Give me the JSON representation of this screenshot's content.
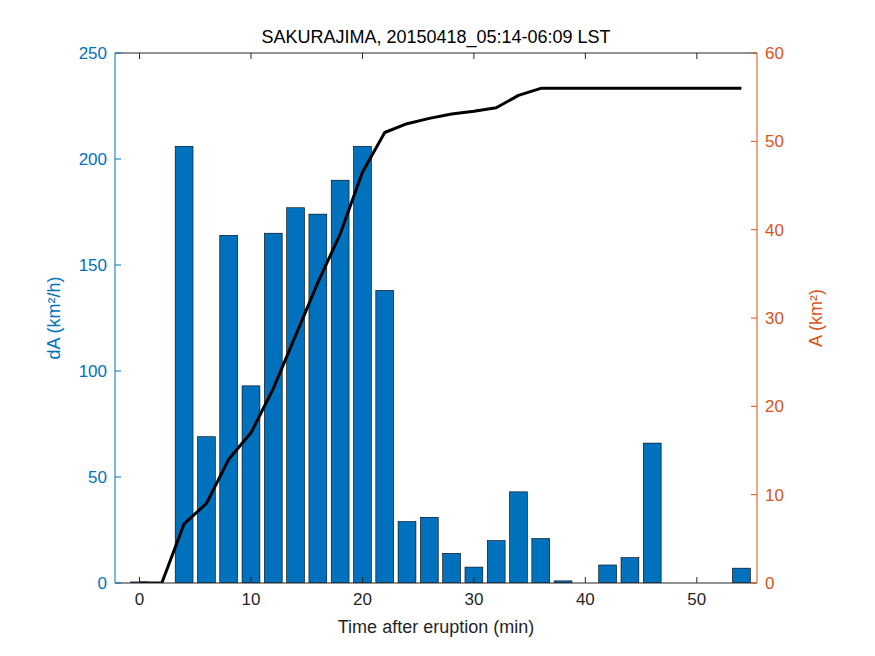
{
  "chart_data": {
    "type": "bar",
    "title": "SAKURAJIMA, 20150418_05:14-06:09 LST",
    "xlabel": "Time after eruption (min)",
    "ylabel": "dA (km²/h)",
    "y2label": "A (km²)",
    "x": [
      0,
      2,
      4,
      6,
      8,
      10,
      12,
      14,
      16,
      18,
      20,
      22,
      24,
      26,
      28,
      30,
      32,
      34,
      36,
      38,
      40,
      42,
      44,
      46,
      48,
      50,
      52,
      54
    ],
    "xlim": [
      -2.2,
      55.4
    ],
    "xticks": [
      0,
      10,
      20,
      30,
      40,
      50
    ],
    "ylim": [
      0,
      250
    ],
    "yticks": [
      0,
      50,
      100,
      150,
      200,
      250
    ],
    "y2lim": [
      0,
      60
    ],
    "y2ticks": [
      0,
      10,
      20,
      30,
      40,
      50,
      60
    ],
    "series": [
      {
        "type": "bar",
        "color": "#0072bd",
        "values": [
          0.5,
          0,
          206,
          69,
          164,
          93,
          165,
          177,
          174,
          190,
          206,
          138,
          29,
          31,
          14,
          7.5,
          20,
          43,
          21,
          1,
          0,
          8.5,
          12,
          66,
          0,
          0,
          0,
          7
        ]
      },
      {
        "type": "line",
        "axis": "y2",
        "color": "#000000",
        "values": [
          0,
          0,
          6.7,
          9,
          14,
          17,
          22,
          28,
          34,
          39.5,
          46.5,
          51,
          52,
          52.6,
          53.1,
          53.4,
          53.8,
          55.2,
          56,
          56,
          56,
          56,
          56,
          56,
          56,
          56,
          56,
          56
        ]
      }
    ]
  }
}
